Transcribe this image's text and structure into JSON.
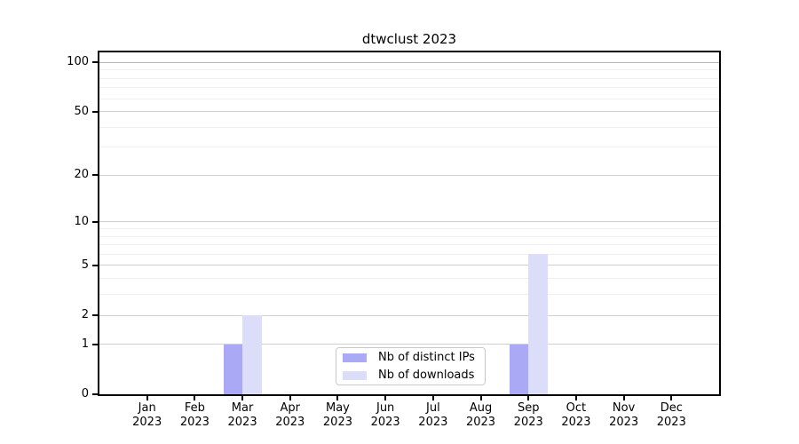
{
  "chart_data": {
    "type": "bar",
    "title": "dtwclust 2023",
    "categories": [
      "Jan 2023",
      "Feb 2023",
      "Mar 2023",
      "Apr 2023",
      "May 2023",
      "Jun 2023",
      "Jul 2023",
      "Aug 2023",
      "Sep 2023",
      "Oct 2023",
      "Nov 2023",
      "Dec 2023"
    ],
    "series": [
      {
        "name": "Nb of distinct IPs",
        "key": "distinct-ips",
        "color": "#a9a9f6",
        "values": [
          0,
          0,
          1,
          0,
          0,
          0,
          0,
          0,
          1,
          0,
          0,
          0
        ]
      },
      {
        "name": "Nb of downloads",
        "key": "downloads",
        "color": "#dcddf9",
        "values": [
          0,
          0,
          2,
          0,
          0,
          0,
          0,
          0,
          6,
          0,
          0,
          0
        ]
      }
    ],
    "y_axis": {
      "scale": "log1p",
      "ticks": [
        0,
        1,
        2,
        5,
        10,
        20,
        50,
        100
      ],
      "minor_ticks": [
        3,
        4,
        6,
        7,
        8,
        9,
        30,
        40,
        60,
        70,
        80,
        90
      ],
      "max": 115
    },
    "xlabel": "",
    "ylabel": "",
    "ylim": [
      0,
      115
    ],
    "grid": "horizontal",
    "legend_position": "lower center inside",
    "colors": {
      "grid_major": "#cfcfcf",
      "grid_minor": "#efefef",
      "grid_top_major": "#b8b8b8",
      "axis": "#000000",
      "background": "#ffffff"
    }
  }
}
